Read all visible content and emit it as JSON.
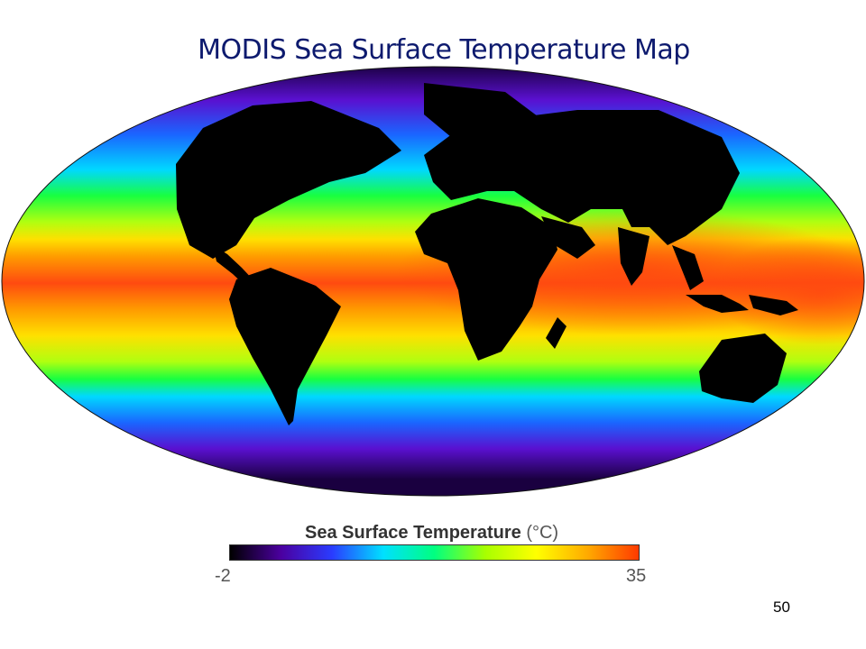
{
  "slide": {
    "title": "MODIS Sea Surface Temperature Map",
    "page_number": "50"
  },
  "legend": {
    "title": "Sea Surface Temperature",
    "unit": "(°C)",
    "min_label": "-2",
    "max_label": "35",
    "colors": [
      "#000000",
      "#4b00a0",
      "#2a3cff",
      "#00e0ff",
      "#00ff80",
      "#a8ff00",
      "#ffff00",
      "#ffaa00",
      "#ff3a00"
    ]
  },
  "map": {
    "projection": "Mollweide",
    "land_color": "#000000",
    "band_colors": {
      "polar": "#1a0040",
      "subpolar": "#5a10d0",
      "cold": "#1a66ff",
      "cool": "#00d8ff",
      "temperate": "#18ff40",
      "mild": "#b0ff10",
      "warm": "#ffe000",
      "hot": "#ff9a00",
      "tropical": "#ff4a10"
    }
  }
}
